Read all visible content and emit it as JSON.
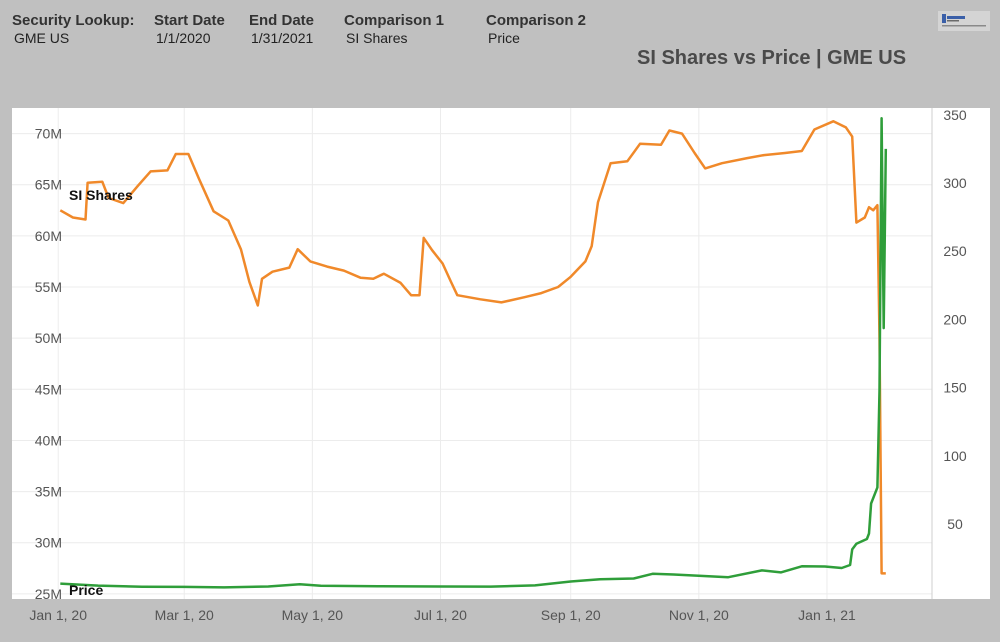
{
  "header": {
    "fields": [
      {
        "label": "Security Lookup:",
        "value": "GME US"
      },
      {
        "label": "Start Date",
        "value": "1/1/2020"
      },
      {
        "label": "End Date",
        "value": "1/31/2021"
      },
      {
        "label": "Comparison 1",
        "value": "SI Shares"
      },
      {
        "label": "Comparison 2",
        "value": "Price"
      }
    ]
  },
  "colors": {
    "si_shares": "#f0892a",
    "price": "#2f9e3a",
    "background": "#c0c0c0",
    "plot": "#ffffff"
  },
  "logo_icon": "company-logo-icon",
  "chart_data": {
    "type": "line",
    "title": "SI Shares vs Price | GME US",
    "x_ticks": [
      "Jan 1, 20",
      "Mar 1, 20",
      "May 1, 20",
      "Jul 1, 20",
      "Sep 1, 20",
      "Nov 1, 20",
      "Jan 1, 21"
    ],
    "x_tick_dates": [
      "2020-01-01",
      "2020-03-01",
      "2020-05-01",
      "2020-07-01",
      "2020-09-01",
      "2020-11-01",
      "2021-01-01"
    ],
    "xlim": [
      "2019-12-10",
      "2021-02-20"
    ],
    "y_left": {
      "unit": "M",
      "ylim": [
        24.5,
        72.5
      ],
      "ticks": [
        "25M",
        "30M",
        "35M",
        "40M",
        "45M",
        "50M",
        "55M",
        "60M",
        "65M",
        "70M"
      ],
      "tick_values": [
        25,
        30,
        35,
        40,
        45,
        50,
        55,
        60,
        65,
        70
      ]
    },
    "y_right": {
      "ylim": [
        -5,
        355
      ],
      "ticks": [
        "50",
        "100",
        "150",
        "200",
        "250",
        "300",
        "350"
      ],
      "tick_values": [
        50,
        100,
        150,
        200,
        250,
        300,
        350
      ]
    },
    "grid": true,
    "series": [
      {
        "name": "SI Shares",
        "axis": "left",
        "points": [
          [
            "2020-01-02",
            62.5
          ],
          [
            "2020-01-08",
            61.8
          ],
          [
            "2020-01-14",
            61.6
          ],
          [
            "2020-01-15",
            65.2
          ],
          [
            "2020-01-22",
            65.3
          ],
          [
            "2020-01-25",
            63.7
          ],
          [
            "2020-02-01",
            63.2
          ],
          [
            "2020-02-08",
            64.9
          ],
          [
            "2020-02-14",
            66.3
          ],
          [
            "2020-02-22",
            66.4
          ],
          [
            "2020-02-26",
            68.0
          ],
          [
            "2020-03-03",
            68.0
          ],
          [
            "2020-03-08",
            65.6
          ],
          [
            "2020-03-15",
            62.4
          ],
          [
            "2020-03-22",
            61.5
          ],
          [
            "2020-03-28",
            58.7
          ],
          [
            "2020-04-01",
            55.5
          ],
          [
            "2020-04-05",
            53.2
          ],
          [
            "2020-04-07",
            55.8
          ],
          [
            "2020-04-12",
            56.5
          ],
          [
            "2020-04-20",
            56.9
          ],
          [
            "2020-04-24",
            58.7
          ],
          [
            "2020-04-30",
            57.5
          ],
          [
            "2020-05-08",
            57.0
          ],
          [
            "2020-05-16",
            56.6
          ],
          [
            "2020-05-24",
            55.9
          ],
          [
            "2020-05-30",
            55.8
          ],
          [
            "2020-06-04",
            56.3
          ],
          [
            "2020-06-12",
            55.4
          ],
          [
            "2020-06-17",
            54.2
          ],
          [
            "2020-06-21",
            54.2
          ],
          [
            "2020-06-23",
            59.8
          ],
          [
            "2020-06-27",
            58.6
          ],
          [
            "2020-07-02",
            57.3
          ],
          [
            "2020-07-06",
            55.5
          ],
          [
            "2020-07-09",
            54.2
          ],
          [
            "2020-07-20",
            53.8
          ],
          [
            "2020-07-30",
            53.5
          ],
          [
            "2020-08-10",
            54.0
          ],
          [
            "2020-08-18",
            54.4
          ],
          [
            "2020-08-26",
            55.0
          ],
          [
            "2020-09-01",
            56.0
          ],
          [
            "2020-09-08",
            57.5
          ],
          [
            "2020-09-11",
            59.0
          ],
          [
            "2020-09-14",
            63.3
          ],
          [
            "2020-09-20",
            67.1
          ],
          [
            "2020-09-28",
            67.3
          ],
          [
            "2020-10-04",
            69.0
          ],
          [
            "2020-10-14",
            68.9
          ],
          [
            "2020-10-18",
            70.3
          ],
          [
            "2020-10-24",
            70.0
          ],
          [
            "2020-10-30",
            68.1
          ],
          [
            "2020-11-04",
            66.6
          ],
          [
            "2020-11-12",
            67.1
          ],
          [
            "2020-11-24",
            67.6
          ],
          [
            "2020-12-02",
            67.9
          ],
          [
            "2020-12-12",
            68.1
          ],
          [
            "2020-12-20",
            68.3
          ],
          [
            "2020-12-26",
            70.4
          ],
          [
            "2021-01-04",
            71.2
          ],
          [
            "2021-01-10",
            70.6
          ],
          [
            "2021-01-13",
            69.7
          ],
          [
            "2021-01-15",
            61.3
          ],
          [
            "2021-01-19",
            61.8
          ],
          [
            "2021-01-21",
            62.8
          ],
          [
            "2021-01-23",
            62.5
          ],
          [
            "2021-01-25",
            63.0
          ],
          [
            "2021-01-26",
            50.0
          ],
          [
            "2021-01-27",
            27.0
          ],
          [
            "2021-01-29",
            27.0
          ]
        ]
      },
      {
        "name": "Price",
        "axis": "right",
        "points": [
          [
            "2020-01-02",
            6.3
          ],
          [
            "2020-01-20",
            4.8
          ],
          [
            "2020-02-10",
            4.0
          ],
          [
            "2020-03-01",
            3.9
          ],
          [
            "2020-03-20",
            3.5
          ],
          [
            "2020-04-10",
            4.2
          ],
          [
            "2020-04-25",
            5.8
          ],
          [
            "2020-05-05",
            4.7
          ],
          [
            "2020-06-01",
            4.4
          ],
          [
            "2020-07-01",
            4.2
          ],
          [
            "2020-07-25",
            4.1
          ],
          [
            "2020-08-15",
            5.0
          ],
          [
            "2020-09-01",
            7.8
          ],
          [
            "2020-09-15",
            9.5
          ],
          [
            "2020-10-01",
            10.0
          ],
          [
            "2020-10-10",
            13.5
          ],
          [
            "2020-10-20",
            13.0
          ],
          [
            "2020-11-01",
            12.0
          ],
          [
            "2020-11-15",
            11.0
          ],
          [
            "2020-12-01",
            16.0
          ],
          [
            "2020-12-10",
            14.5
          ],
          [
            "2020-12-20",
            19.0
          ],
          [
            "2020-12-31",
            18.8
          ],
          [
            "2021-01-08",
            17.7
          ],
          [
            "2021-01-12",
            19.9
          ],
          [
            "2021-01-13",
            31.4
          ],
          [
            "2021-01-15",
            35.5
          ],
          [
            "2021-01-20",
            39.0
          ],
          [
            "2021-01-21",
            43.0
          ],
          [
            "2021-01-22",
            65.0
          ],
          [
            "2021-01-25",
            76.8
          ],
          [
            "2021-01-26",
            147.9
          ],
          [
            "2021-01-27",
            347.5
          ],
          [
            "2021-01-28",
            193.6
          ],
          [
            "2021-01-29",
            325.0
          ]
        ]
      }
    ],
    "series_labels": [
      {
        "text": "SI Shares",
        "at": [
          "2020-01-02",
          64.0
        ],
        "axis": "left"
      },
      {
        "text": "Price",
        "at": [
          "2020-01-02",
          25.4
        ],
        "axis": "left"
      }
    ]
  }
}
